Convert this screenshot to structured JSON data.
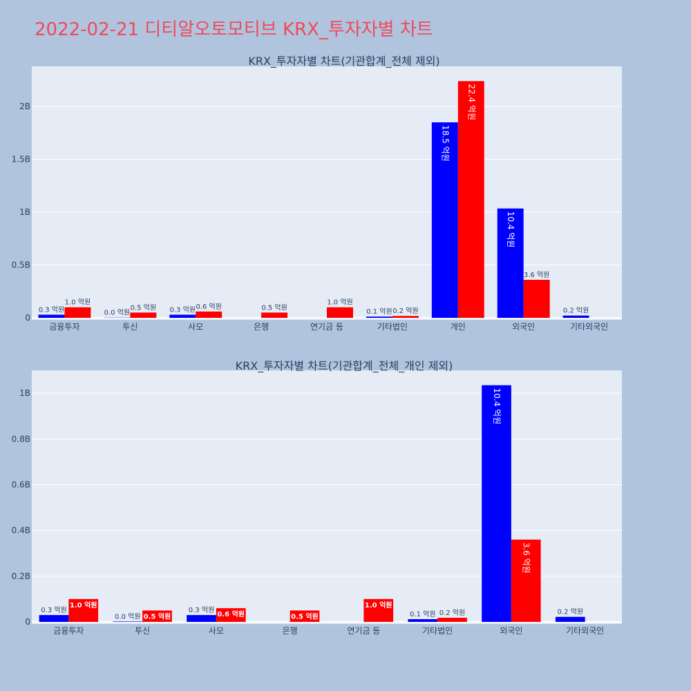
{
  "page": {
    "title": "2022-02-21 디티알오토모티브 KRX_투자자별 차트"
  },
  "colors": {
    "background": "#b0c4de",
    "plot_background": "#e5ecf6",
    "sell": "#0000ff",
    "buy": "#ff0000",
    "title": "#ef4a5c",
    "text": "#2a3f5f"
  },
  "chart_data": [
    {
      "type": "bar",
      "title": "KRX_투자자별 차트(기관합계_전체 제외)",
      "categories": [
        "금융투자",
        "투신",
        "사모",
        "은행",
        "연기금 등",
        "기타법인",
        "개인",
        "외국인",
        "기타외국인"
      ],
      "series": [
        {
          "color": "#0000ff",
          "values": [
            0.03,
            0.002,
            0.03,
            0,
            0,
            0.012,
            1.85,
            1.035,
            0.022
          ],
          "labels": [
            "0.3 억원",
            "0.0 억원",
            "0.3 억원",
            "",
            "",
            "0.1 억원",
            "18.5 억원",
            "10.4 억원",
            "0.2 억원"
          ]
        },
        {
          "color": "#ff0000",
          "values": [
            0.1,
            0.05,
            0.06,
            0.05,
            0.1,
            0.018,
            2.24,
            0.36,
            0
          ],
          "labels": [
            "1.0 억원",
            "0.5 억원",
            "0.6 억원",
            "0.5 억원",
            "1.0 억원",
            "0.2 억원",
            "22.4 억원",
            "3.6 억원",
            ""
          ]
        }
      ],
      "ylim": [
        0,
        2.38
      ],
      "yticks": [
        0,
        0.5,
        1,
        1.5,
        2
      ],
      "ytick_labels": [
        "0",
        "0.5B",
        "1B",
        "1.5B",
        "2B"
      ],
      "grid": true
    },
    {
      "type": "bar",
      "title": "KRX_투자자별 차트(기관합계_전체_개인 제외)",
      "categories": [
        "금융투자",
        "투신",
        "사모",
        "은행",
        "연기금 등",
        "기타법인",
        "외국인",
        "기타외국인"
      ],
      "series": [
        {
          "color": "#0000ff",
          "values": [
            0.03,
            0.002,
            0.03,
            0,
            0,
            0.012,
            1.035,
            0.022
          ],
          "labels": [
            "0.3 억원",
            "0.0 억원",
            "0.3 억원",
            "",
            "",
            "0.1 억원",
            "10.4 억원",
            "0.2 억원"
          ]
        },
        {
          "color": "#ff0000",
          "values": [
            0.1,
            0.05,
            0.06,
            0.05,
            0.1,
            0.018,
            0.36,
            0
          ],
          "labels": [
            "1.0 억원",
            "0.5 억원",
            "0.6 억원",
            "0.5 억원",
            "1.0 억원",
            "0.2 억원",
            "3.6 억원",
            ""
          ]
        }
      ],
      "ylim": [
        0,
        1.1
      ],
      "yticks": [
        0,
        0.2,
        0.4,
        0.6,
        0.8,
        1
      ],
      "ytick_labels": [
        "0",
        "0.2B",
        "0.4B",
        "0.6B",
        "0.8B",
        "1B"
      ],
      "grid": true
    }
  ]
}
